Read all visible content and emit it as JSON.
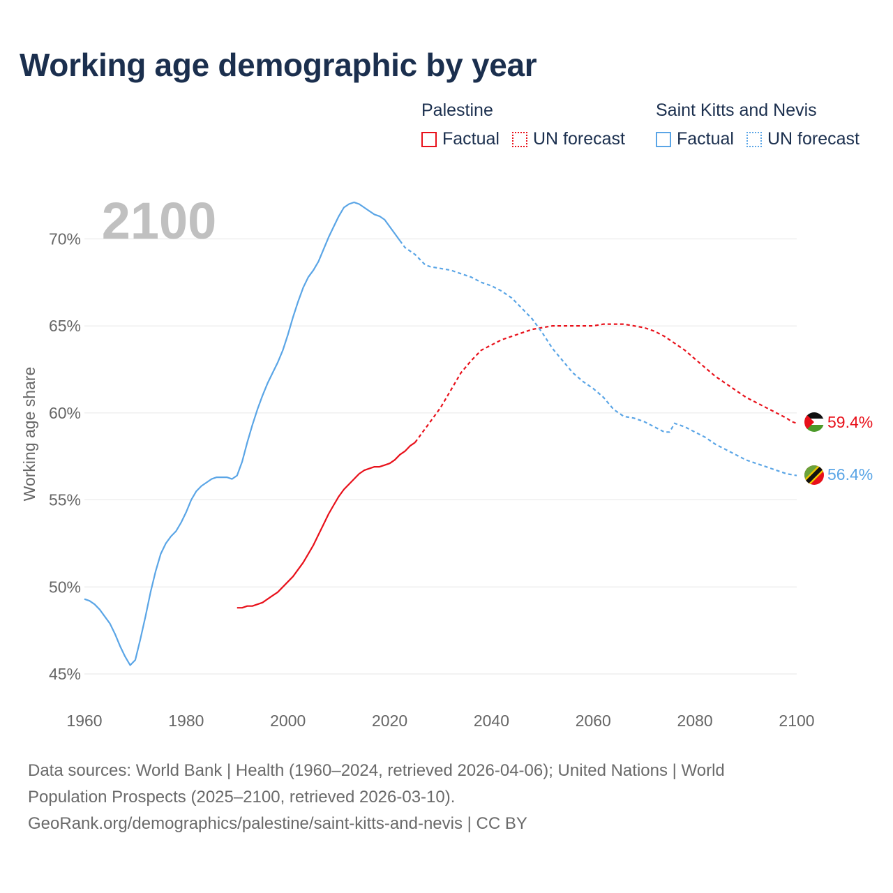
{
  "title": "Working age demographic by year",
  "legend": {
    "groups": [
      {
        "name": "Palestine",
        "color": "#e8101a",
        "factual": "Factual",
        "forecast": "UN forecast"
      },
      {
        "name": "Saint Kitts and Nevis",
        "color": "#5aa5e6",
        "factual": "Factual",
        "forecast": "UN forecast"
      }
    ]
  },
  "chart_data": {
    "type": "line",
    "year_watermark": "2100",
    "ylabel": "Working age share",
    "xlim": [
      1960,
      2100
    ],
    "ylim": [
      45,
      72.5
    ],
    "x_ticks": [
      "1960",
      "1980",
      "2000",
      "2020",
      "2040",
      "2060",
      "2080",
      "2100"
    ],
    "x_tick_values": [
      1960,
      1980,
      2000,
      2020,
      2040,
      2060,
      2080,
      2100
    ],
    "y_ticks": [
      "45%",
      "50%",
      "55%",
      "60%",
      "65%",
      "70%"
    ],
    "y_tick_values": [
      45,
      50,
      55,
      60,
      65,
      70
    ],
    "series": [
      {
        "name": "Palestine",
        "color": "#e8101a",
        "end_label": "59.4%",
        "flag": "palestine",
        "factual": [
          [
            1990,
            48.8
          ],
          [
            1991,
            48.8
          ],
          [
            1992,
            48.9
          ],
          [
            1993,
            48.9
          ],
          [
            1994,
            49.0
          ],
          [
            1995,
            49.1
          ],
          [
            1996,
            49.3
          ],
          [
            1997,
            49.5
          ],
          [
            1998,
            49.7
          ],
          [
            1999,
            50.0
          ],
          [
            2000,
            50.3
          ],
          [
            2001,
            50.6
          ],
          [
            2002,
            51.0
          ],
          [
            2003,
            51.4
          ],
          [
            2004,
            51.9
          ],
          [
            2005,
            52.4
          ],
          [
            2006,
            53.0
          ],
          [
            2007,
            53.6
          ],
          [
            2008,
            54.2
          ],
          [
            2009,
            54.7
          ],
          [
            2010,
            55.2
          ],
          [
            2011,
            55.6
          ],
          [
            2012,
            55.9
          ],
          [
            2013,
            56.2
          ],
          [
            2014,
            56.5
          ],
          [
            2015,
            56.7
          ],
          [
            2016,
            56.8
          ],
          [
            2017,
            56.9
          ],
          [
            2018,
            56.9
          ],
          [
            2019,
            57.0
          ],
          [
            2020,
            57.1
          ],
          [
            2021,
            57.3
          ],
          [
            2022,
            57.6
          ],
          [
            2023,
            57.8
          ],
          [
            2024,
            58.1
          ],
          [
            2025,
            58.3
          ]
        ],
        "forecast": [
          [
            2025,
            58.3
          ],
          [
            2026,
            58.7
          ],
          [
            2028,
            59.5
          ],
          [
            2030,
            60.3
          ],
          [
            2032,
            61.3
          ],
          [
            2034,
            62.3
          ],
          [
            2036,
            63.0
          ],
          [
            2038,
            63.6
          ],
          [
            2040,
            63.9
          ],
          [
            2042,
            64.2
          ],
          [
            2044,
            64.4
          ],
          [
            2046,
            64.6
          ],
          [
            2048,
            64.8
          ],
          [
            2050,
            64.9
          ],
          [
            2052,
            65.0
          ],
          [
            2054,
            65.0
          ],
          [
            2056,
            65.0
          ],
          [
            2058,
            65.0
          ],
          [
            2060,
            65.0
          ],
          [
            2062,
            65.1
          ],
          [
            2064,
            65.1
          ],
          [
            2066,
            65.1
          ],
          [
            2068,
            65.0
          ],
          [
            2070,
            64.9
          ],
          [
            2072,
            64.7
          ],
          [
            2074,
            64.4
          ],
          [
            2076,
            64.0
          ],
          [
            2078,
            63.6
          ],
          [
            2080,
            63.1
          ],
          [
            2082,
            62.6
          ],
          [
            2084,
            62.1
          ],
          [
            2086,
            61.7
          ],
          [
            2088,
            61.3
          ],
          [
            2090,
            60.9
          ],
          [
            2092,
            60.6
          ],
          [
            2094,
            60.3
          ],
          [
            2096,
            60.0
          ],
          [
            2098,
            59.7
          ],
          [
            2099,
            59.5
          ],
          [
            2100,
            59.4
          ]
        ]
      },
      {
        "name": "Saint Kitts and Nevis",
        "color": "#5aa5e6",
        "end_label": "56.4%",
        "flag": "saint-kitts-and-nevis",
        "factual": [
          [
            1960,
            49.3
          ],
          [
            1961,
            49.2
          ],
          [
            1962,
            49.0
          ],
          [
            1963,
            48.7
          ],
          [
            1964,
            48.3
          ],
          [
            1965,
            47.9
          ],
          [
            1966,
            47.3
          ],
          [
            1967,
            46.6
          ],
          [
            1968,
            46.0
          ],
          [
            1969,
            45.5
          ],
          [
            1970,
            45.8
          ],
          [
            1971,
            47.0
          ],
          [
            1972,
            48.3
          ],
          [
            1973,
            49.7
          ],
          [
            1974,
            50.9
          ],
          [
            1975,
            51.9
          ],
          [
            1976,
            52.5
          ],
          [
            1977,
            52.9
          ],
          [
            1978,
            53.2
          ],
          [
            1979,
            53.7
          ],
          [
            1980,
            54.3
          ],
          [
            1981,
            55.0
          ],
          [
            1982,
            55.5
          ],
          [
            1983,
            55.8
          ],
          [
            1984,
            56.0
          ],
          [
            1985,
            56.2
          ],
          [
            1986,
            56.3
          ],
          [
            1987,
            56.3
          ],
          [
            1988,
            56.3
          ],
          [
            1989,
            56.2
          ],
          [
            1990,
            56.4
          ],
          [
            1991,
            57.2
          ],
          [
            1992,
            58.3
          ],
          [
            1993,
            59.3
          ],
          [
            1994,
            60.2
          ],
          [
            1995,
            61.0
          ],
          [
            1996,
            61.7
          ],
          [
            1997,
            62.3
          ],
          [
            1998,
            62.9
          ],
          [
            1999,
            63.6
          ],
          [
            2000,
            64.5
          ],
          [
            2001,
            65.5
          ],
          [
            2002,
            66.4
          ],
          [
            2003,
            67.2
          ],
          [
            2004,
            67.8
          ],
          [
            2005,
            68.2
          ],
          [
            2006,
            68.7
          ],
          [
            2007,
            69.4
          ],
          [
            2008,
            70.1
          ],
          [
            2009,
            70.7
          ],
          [
            2010,
            71.3
          ],
          [
            2011,
            71.8
          ],
          [
            2012,
            72.0
          ],
          [
            2013,
            72.1
          ],
          [
            2014,
            72.0
          ],
          [
            2015,
            71.8
          ],
          [
            2016,
            71.6
          ],
          [
            2017,
            71.4
          ],
          [
            2018,
            71.3
          ],
          [
            2019,
            71.1
          ],
          [
            2020,
            70.7
          ],
          [
            2021,
            70.3
          ],
          [
            2022,
            69.9
          ]
        ],
        "forecast": [
          [
            2022,
            69.9
          ],
          [
            2023,
            69.5
          ],
          [
            2024,
            69.3
          ],
          [
            2025,
            69.1
          ],
          [
            2026,
            68.8
          ],
          [
            2027,
            68.5
          ],
          [
            2028,
            68.4
          ],
          [
            2030,
            68.3
          ],
          [
            2032,
            68.2
          ],
          [
            2034,
            68.0
          ],
          [
            2036,
            67.8
          ],
          [
            2038,
            67.5
          ],
          [
            2040,
            67.3
          ],
          [
            2042,
            67.0
          ],
          [
            2044,
            66.6
          ],
          [
            2046,
            66.0
          ],
          [
            2048,
            65.4
          ],
          [
            2050,
            64.6
          ],
          [
            2052,
            63.7
          ],
          [
            2054,
            63.0
          ],
          [
            2056,
            62.3
          ],
          [
            2058,
            61.8
          ],
          [
            2060,
            61.4
          ],
          [
            2062,
            60.9
          ],
          [
            2064,
            60.2
          ],
          [
            2066,
            59.8
          ],
          [
            2068,
            59.7
          ],
          [
            2070,
            59.5
          ],
          [
            2072,
            59.2
          ],
          [
            2074,
            58.9
          ],
          [
            2075,
            58.9
          ],
          [
            2076,
            59.4
          ],
          [
            2078,
            59.2
          ],
          [
            2080,
            58.9
          ],
          [
            2082,
            58.6
          ],
          [
            2084,
            58.2
          ],
          [
            2086,
            57.9
          ],
          [
            2088,
            57.6
          ],
          [
            2090,
            57.3
          ],
          [
            2092,
            57.1
          ],
          [
            2094,
            56.9
          ],
          [
            2096,
            56.7
          ],
          [
            2098,
            56.5
          ],
          [
            2100,
            56.4
          ]
        ]
      }
    ]
  },
  "footer": {
    "line1": "Data sources: World Bank | Health (1960–2024, retrieved 2026-04-06); United Nations | World",
    "line2": "Population Prospects (2025–2100, retrieved 2026-03-10).",
    "line3": "GeoRank.org/demographics/palestine/saint-kitts-and-nevis | CC BY"
  }
}
